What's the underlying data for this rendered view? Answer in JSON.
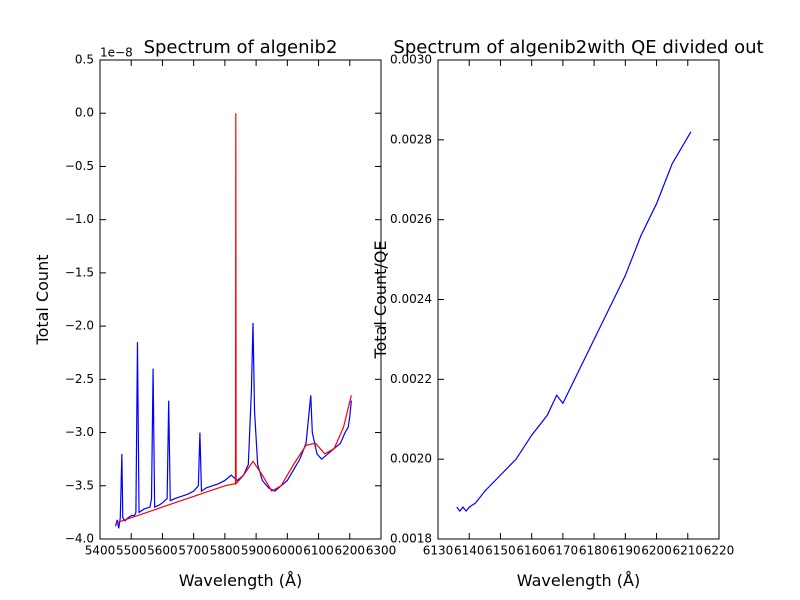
{
  "chart_data": [
    {
      "type": "line",
      "title": "Spectrum of algenib2",
      "xlabel": "Wavelength (Å)",
      "ylabel": "Total Count",
      "y_offset_label": "1e−8",
      "xlim": [
        5400,
        6300
      ],
      "xticks": [
        5400,
        5500,
        5600,
        5700,
        5800,
        5900,
        6000,
        6100,
        6200,
        6300
      ],
      "ylim": [
        -4.0,
        0.5
      ],
      "yticks": [
        {
          "value": -4.0,
          "label": "−4.0"
        },
        {
          "value": -3.5,
          "label": "−3.5"
        },
        {
          "value": -3.0,
          "label": "−3.0"
        },
        {
          "value": -2.5,
          "label": "−2.5"
        },
        {
          "value": -2.0,
          "label": "−2.0"
        },
        {
          "value": -1.5,
          "label": "−1.5"
        },
        {
          "value": -1.0,
          "label": "−1.0"
        },
        {
          "value": -0.5,
          "label": "−0.5"
        },
        {
          "value": 0,
          "label": "0.0"
        },
        0.5
      ],
      "grid": false,
      "series": [
        {
          "color": "#0000ff",
          "x": [
            5450,
            5455,
            5460,
            5465,
            5470,
            5473,
            5480,
            5490,
            5500,
            5510,
            5515,
            5520,
            5525,
            5540,
            5560,
            5565,
            5570,
            5575,
            5590,
            5600,
            5615,
            5620,
            5625,
            5640,
            5660,
            5680,
            5700,
            5715,
            5720,
            5725,
            5740,
            5760,
            5780,
            5800,
            5820,
            5840,
            5860,
            5875,
            5885,
            5890,
            5895,
            5905,
            5920,
            5940,
            5960,
            5980,
            6000,
            6020,
            6040,
            6060,
            6070,
            6075,
            6080,
            6095,
            6110,
            6130,
            6150,
            6170,
            6185,
            6195,
            6200,
            6205
          ],
          "values": [
            -3.88,
            -3.82,
            -3.9,
            -3.8,
            -3.2,
            -3.8,
            -3.83,
            -3.8,
            -3.78,
            -3.78,
            -3.75,
            -2.15,
            -3.75,
            -3.72,
            -3.7,
            -3.62,
            -2.4,
            -3.7,
            -3.68,
            -3.66,
            -3.62,
            -2.7,
            -3.64,
            -3.62,
            -3.6,
            -3.58,
            -3.55,
            -3.5,
            -3.0,
            -3.55,
            -3.52,
            -3.5,
            -3.48,
            -3.45,
            -3.4,
            -3.45,
            -3.4,
            -3.3,
            -2.6,
            -1.97,
            -2.8,
            -3.3,
            -3.45,
            -3.52,
            -3.55,
            -3.5,
            -3.45,
            -3.35,
            -3.25,
            -3.1,
            -2.8,
            -2.65,
            -3.0,
            -3.2,
            -3.25,
            -3.2,
            -3.15,
            -3.1,
            -3.0,
            -2.95,
            -2.85,
            -2.7
          ]
        },
        {
          "color": "#ff0000",
          "x": [
            5450,
            5500,
            5550,
            5600,
            5650,
            5700,
            5750,
            5800,
            5834,
            5835,
            5836,
            5860,
            5890,
            5920,
            5950,
            5980,
            6020,
            6060,
            6090,
            6120,
            6150,
            6180,
            6205
          ],
          "values": [
            -3.85,
            -3.8,
            -3.75,
            -3.7,
            -3.65,
            -3.6,
            -3.55,
            -3.5,
            -3.48,
            0,
            -3.48,
            -3.4,
            -3.27,
            -3.4,
            -3.55,
            -3.5,
            -3.3,
            -3.12,
            -3.1,
            -3.2,
            -3.15,
            -2.95,
            -2.65
          ]
        }
      ]
    },
    {
      "type": "line",
      "title": "Spectrum of algenib2with QE divided out",
      "xlabel": "Wavelength (Å)",
      "ylabel": "Total Count/QE",
      "xlim": [
        6130,
        6220
      ],
      "xticks": [
        6130,
        6140,
        6150,
        6160,
        6170,
        6180,
        6190,
        6200,
        6210,
        6220
      ],
      "ylim": [
        0.0018,
        0.003
      ],
      "yticks": [
        0.0018,
        {
          "value": 0.002,
          "label": "0.0020"
        },
        0.0022,
        0.0024,
        0.0026,
        0.0028,
        {
          "value": 0.003,
          "label": "0.0030"
        }
      ],
      "grid": false,
      "series": [
        {
          "color": "#0000ff",
          "x": [
            6136,
            6137,
            6138,
            6139,
            6140,
            6142,
            6145,
            6150,
            6155,
            6160,
            6165,
            6168,
            6170,
            6175,
            6180,
            6185,
            6190,
            6195,
            6200,
            6205,
            6211
          ],
          "values": [
            0.00188,
            0.00187,
            0.00188,
            0.00187,
            0.00188,
            0.00189,
            0.00192,
            0.00196,
            0.002,
            0.00206,
            0.00211,
            0.00216,
            0.00214,
            0.00222,
            0.0023,
            0.00238,
            0.00246,
            0.00256,
            0.00264,
            0.00274,
            0.00282
          ]
        }
      ]
    }
  ]
}
